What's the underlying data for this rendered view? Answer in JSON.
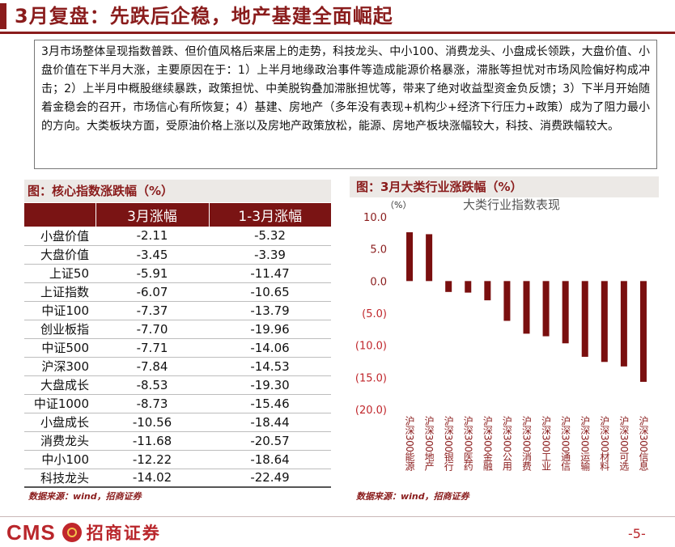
{
  "title": "3月复盘：先跌后企稳，地产基建全面崛起",
  "intro": "3月市场整体呈现指数普跌、但价值风格后来居上的走势，科技龙头、中小100、消费龙头、小盘成长领跌，大盘价值、小盘价值在下半月大涨，主要原因在于：1）上半月地缘政治事件等造成能源价格暴涨，滞胀等担忧对市场风险偏好构成冲击；2）上半月中概股继续暴跌，政策担忧、中美脱钩叠加滞胀担忧等，带来了绝对收益型资金负反馈；3）下半月开始随着金稳会的召开，市场信心有所恢复；4）基建、房地产（多年没有表现+机构少+经济下行压力+政策）成为了阻力最小的方向。大类板块方面，受原油价格上涨以及房地产政策放松，能源、房地产板块涨幅较大，科技、消费跌幅较大。",
  "table": {
    "title": "图：核心指数涨跌幅（%）",
    "headers": [
      "",
      "3月涨幅",
      "1-3月涨幅"
    ],
    "rows": [
      {
        "name": "小盘价值",
        "mar": "-2.11",
        "ytd": "-5.32"
      },
      {
        "name": "大盘价值",
        "mar": "-3.45",
        "ytd": "-3.39"
      },
      {
        "name": "上证50",
        "mar": "-5.91",
        "ytd": "-11.47"
      },
      {
        "name": "上证指数",
        "mar": "-6.07",
        "ytd": "-10.65"
      },
      {
        "name": "中证100",
        "mar": "-7.37",
        "ytd": "-13.79"
      },
      {
        "name": "创业板指",
        "mar": "-7.70",
        "ytd": "-19.96"
      },
      {
        "name": "中证500",
        "mar": "-7.71",
        "ytd": "-14.06"
      },
      {
        "name": "沪深300",
        "mar": "-7.84",
        "ytd": "-14.53"
      },
      {
        "name": "大盘成长",
        "mar": "-8.53",
        "ytd": "-19.30"
      },
      {
        "name": "中证1000",
        "mar": "-8.73",
        "ytd": "-15.46"
      },
      {
        "name": "小盘成长",
        "mar": "-10.56",
        "ytd": "-18.44"
      },
      {
        "name": "消费龙头",
        "mar": "-11.68",
        "ytd": "-20.57"
      },
      {
        "name": "中小100",
        "mar": "-12.22",
        "ytd": "-18.64"
      },
      {
        "name": "科技龙头",
        "mar": "-14.02",
        "ytd": "-22.49"
      }
    ],
    "source": "数据来源：wind，招商证券"
  },
  "chart_title": "图：3月大类行业涨跌幅（%）",
  "chart_data": {
    "type": "bar",
    "title": "大类行业指数表现",
    "ylabel": "（%）",
    "ylim": [
      -20,
      10
    ],
    "yticks": [
      "10.0",
      "5.0",
      "0.0",
      "(5.0)",
      "(10.0)",
      "(15.0)",
      "(20.0)"
    ],
    "categories": [
      "沪深300能源",
      "沪深300地产",
      "沪深300银行",
      "沪深300医药",
      "沪深300金融",
      "沪深300公用",
      "沪深300消费",
      "沪深300工业",
      "沪深300通信",
      "沪深300运输",
      "沪深300材料",
      "沪深300可选",
      "沪深300信息"
    ],
    "values": [
      7.6,
      7.3,
      -1.7,
      -1.8,
      -3.0,
      -6.2,
      -8.2,
      -8.6,
      -9.7,
      -11.8,
      -12.6,
      -13.3,
      -15.7
    ],
    "bar_color": "#7a0f0f",
    "grid": false,
    "legend": "none"
  },
  "chart_source": "数据来源：wind，招商证券",
  "footer": {
    "logo_en": "CMS",
    "logo_cn": "招商证券",
    "page": "-5-"
  }
}
